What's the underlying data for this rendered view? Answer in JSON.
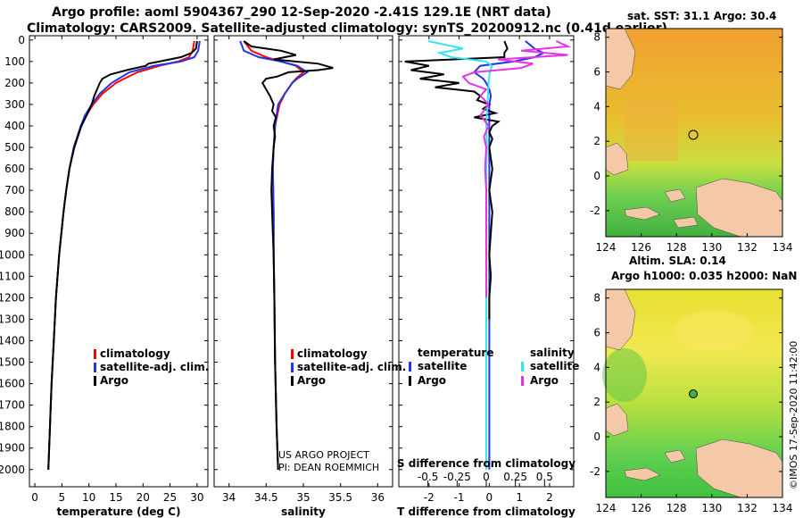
{
  "header": {
    "title_line1": "Argo profile: aoml 5904367_290 12-Sep-2020 -2.41S 129.1E (NRT data)",
    "title_line2": "Climatology: CARS2009. Satellite-adjusted climatology: synTS_20200912.nc (0.41d earlier)"
  },
  "depth_ticks": [
    "0",
    "100",
    "200",
    "300",
    "400",
    "500",
    "600",
    "700",
    "800",
    "900",
    "1000",
    "1100",
    "1200",
    "1300",
    "1400",
    "1500",
    "1600",
    "1700",
    "1800",
    "1900",
    "2000"
  ],
  "colors": {
    "climatology": "#ff0000",
    "satellite": "#1f35e8",
    "argo": "#000000",
    "s_satellite": "#33e6f0",
    "s_argo": "#e633e6",
    "land": "#f5c8a8"
  },
  "chart_data": [
    {
      "type": "line",
      "title": "",
      "xlabel": "temperature (deg C)",
      "ylabel": "depth",
      "xlim": [
        -1,
        32
      ],
      "ylim": [
        2080,
        -20
      ],
      "xticks": [
        "0",
        "5",
        "10",
        "15",
        "20",
        "25",
        "30"
      ],
      "xtick_values": [
        0,
        5,
        10,
        15,
        20,
        25,
        30
      ],
      "legend": [
        "climatology",
        "satellite-adj. clim.",
        "Argo"
      ],
      "series": [
        {
          "name": "climatology",
          "depth": [
            5,
            50,
            80,
            100,
            120,
            150,
            180,
            200,
            250,
            300,
            350,
            400,
            500,
            600,
            700,
            800,
            1000,
            1200,
            1400,
            1600,
            1800,
            2000
          ],
          "values": [
            29.5,
            29.2,
            28.5,
            26.5,
            23,
            19,
            16.5,
            15,
            12.5,
            10.8,
            9.5,
            8.5,
            7.2,
            6.4,
            5.8,
            5.3,
            4.5,
            3.9,
            3.5,
            3.1,
            2.8,
            2.5
          ]
        },
        {
          "name": "satellite-adj. clim.",
          "depth": [
            5,
            50,
            80,
            100,
            120,
            150,
            180,
            200,
            250,
            300,
            350,
            400,
            500,
            600,
            700,
            800,
            1000,
            1200,
            1400,
            1600,
            1800,
            2000
          ],
          "values": [
            30.5,
            30.2,
            29.5,
            27,
            22,
            17.5,
            15.5,
            14.2,
            12,
            10.5,
            9.3,
            8.5,
            7.2,
            6.4,
            5.8,
            5.3,
            4.5,
            3.9,
            3.5,
            3.1,
            2.8,
            2.5
          ]
        },
        {
          "name": "Argo",
          "depth": [
            5,
            40,
            60,
            80,
            100,
            110,
            120,
            140,
            160,
            180,
            200,
            230,
            260,
            300,
            350,
            400,
            500,
            600,
            700,
            800,
            1000,
            1200,
            1400,
            1600,
            1800,
            2000
          ],
          "values": [
            30,
            29.8,
            29,
            27,
            23,
            21,
            20.5,
            17,
            14,
            12.5,
            12,
            11.5,
            11,
            10.5,
            9.6,
            8.6,
            7.3,
            6.4,
            5.8,
            5.3,
            4.5,
            3.9,
            3.5,
            3.1,
            2.8,
            2.5
          ]
        }
      ]
    },
    {
      "type": "line",
      "title": "",
      "xlabel": "salinity",
      "ylabel": "depth",
      "xlim": [
        33.8,
        36.2
      ],
      "ylim": [
        2080,
        -20
      ],
      "xticks": [
        "34",
        "34.5",
        "35",
        "35.5",
        "36"
      ],
      "xtick_values": [
        34,
        34.5,
        35,
        35.5,
        36
      ],
      "legend": [
        "climatology",
        "satellite-adj. clim.",
        "Argo"
      ],
      "series": [
        {
          "name": "climatology",
          "depth": [
            5,
            50,
            80,
            100,
            120,
            150,
            180,
            200,
            250,
            300,
            400,
            500,
            600,
            800,
            1000,
            1200,
            1500,
            1800,
            2000
          ],
          "values": [
            34.2,
            34.3,
            34.5,
            34.7,
            34.9,
            35.0,
            34.9,
            34.85,
            34.75,
            34.68,
            34.62,
            34.6,
            34.59,
            34.6,
            34.6,
            34.61,
            34.62,
            34.64,
            34.66
          ]
        },
        {
          "name": "satellite-adj. clim.",
          "depth": [
            5,
            50,
            80,
            100,
            120,
            150,
            180,
            200,
            250,
            300,
            400,
            500,
            600,
            800,
            1000,
            1200,
            1500,
            1800,
            2000
          ],
          "values": [
            34.15,
            34.2,
            34.4,
            34.7,
            34.92,
            35.05,
            34.92,
            34.85,
            34.75,
            34.66,
            34.62,
            34.6,
            34.59,
            34.6,
            34.6,
            34.61,
            34.62,
            34.64,
            34.66
          ]
        },
        {
          "name": "Argo",
          "depth": [
            5,
            30,
            50,
            70,
            90,
            110,
            130,
            140,
            150,
            170,
            180,
            200,
            230,
            260,
            300,
            330,
            360,
            400,
            450,
            500,
            600,
            700,
            800,
            900,
            1000,
            1200,
            1500,
            1800,
            2000
          ],
          "values": [
            34.2,
            34.3,
            34.7,
            34.9,
            34.6,
            35.2,
            35.4,
            35.2,
            34.8,
            34.65,
            34.5,
            34.45,
            34.5,
            34.55,
            34.6,
            34.58,
            34.63,
            34.6,
            34.62,
            34.6,
            34.58,
            34.57,
            34.58,
            34.59,
            34.6,
            34.61,
            34.62,
            34.64,
            34.66
          ]
        }
      ]
    },
    {
      "type": "line",
      "title": "",
      "xlabel": "T difference from climatology",
      "ylabel": "depth",
      "xlim": [
        -3,
        2.8
      ],
      "ylim": [
        2080,
        -20
      ],
      "xticks": [
        "-2",
        "-1",
        "0",
        "1",
        "2"
      ],
      "xtick_values": [
        -2,
        -1,
        0,
        1,
        2
      ],
      "top_xlabel": "S difference from climatology",
      "top_xticks": [
        "-0.5",
        "-0.25",
        "0",
        "0.25",
        "0.5"
      ],
      "top_xtick_values": [
        -0.5,
        -0.25,
        0,
        0.25,
        0.5
      ],
      "top_xlim": [
        -0.75,
        0.75
      ],
      "legend": [
        "temperature",
        "satellite",
        "Argo",
        "salinity",
        "satellite",
        "Argo"
      ],
      "series": [
        {
          "name": "T satellite",
          "axis": "T",
          "depth": [
            5,
            40,
            60,
            80,
            100,
            120,
            150,
            180,
            200,
            230,
            260,
            300,
            400,
            500,
            600,
            700,
            800,
            1000,
            1200,
            1400,
            1600,
            1800,
            2000
          ],
          "values": [
            1.2,
            1.5,
            1.8,
            1.5,
            0.8,
            -0.3,
            -0.5,
            -0.2,
            -0.1,
            0,
            0.05,
            0,
            0,
            0,
            0,
            0,
            0,
            0,
            0,
            0,
            0,
            0,
            0
          ]
        },
        {
          "name": "T Argo",
          "axis": "T",
          "depth": [
            5,
            40,
            60,
            80,
            100,
            120,
            140,
            160,
            180,
            200,
            220,
            240,
            260,
            280,
            300,
            320,
            340,
            360,
            380,
            400,
            430,
            460,
            500,
            600,
            700,
            800,
            900,
            1000,
            1100,
            1200,
            1300
          ],
          "values": [
            0.5,
            0.6,
            0.5,
            0.5,
            -2.8,
            -2,
            -2.6,
            -1.5,
            -2.3,
            -1,
            -1.8,
            -0.5,
            -0.3,
            -0.4,
            0,
            -0.2,
            0.2,
            -0.5,
            0.3,
            0.1,
            0,
            0.1,
            0,
            0.1,
            0,
            0.1,
            0.05,
            0,
            0.05,
            0,
            0
          ]
        },
        {
          "name": "S satellite",
          "axis": "S",
          "depth": [
            5,
            40,
            60,
            80,
            100,
            120,
            150,
            200,
            300,
            400,
            500,
            600,
            800,
            1000,
            1200,
            1400,
            1600,
            1800,
            2000
          ],
          "values": [
            -0.5,
            -0.2,
            -0.4,
            -0.3,
            0,
            0.05,
            0.03,
            0.02,
            0.01,
            0,
            0.005,
            0,
            0,
            0,
            0,
            0,
            0,
            0,
            0
          ]
        },
        {
          "name": "S Argo",
          "axis": "S",
          "depth": [
            5,
            30,
            50,
            70,
            90,
            110,
            130,
            150,
            170,
            200,
            230,
            260,
            300,
            350,
            400,
            450,
            500,
            600,
            700,
            800,
            900,
            1000,
            1100,
            1200
          ],
          "values": [
            0.6,
            0.7,
            0.3,
            0.7,
            0.1,
            0.4,
            0.3,
            -0.1,
            -0.2,
            -0.15,
            0,
            -0.05,
            0.02,
            -0.05,
            0.02,
            -0.02,
            0,
            -0.01,
            0,
            0,
            0,
            0,
            0,
            0
          ]
        }
      ]
    }
  ],
  "maps": {
    "top": {
      "title": "sat. SST: 31.1 Argo: 30.4",
      "y_ticks": [
        "8",
        "6",
        "4",
        "2",
        "0",
        "-2"
      ],
      "x_ticks": [
        "124",
        "126",
        "128",
        "130",
        "132",
        "134"
      ]
    },
    "bottom": {
      "title_line1": "Altim. SLA: 0.14",
      "title_line2": "Argo h1000: 0.035 h2000: NaN",
      "y_ticks": [
        "8",
        "6",
        "4",
        "2",
        "0",
        "-2"
      ],
      "x_ticks": [
        "124",
        "126",
        "128",
        "130",
        "132",
        "134"
      ]
    }
  },
  "credit": {
    "line1": "US ARGO PROJECT",
    "line2": "PI: DEAN ROEMMICH"
  },
  "watermark": "©IMOS 17-Sep-2020 11:42:00"
}
